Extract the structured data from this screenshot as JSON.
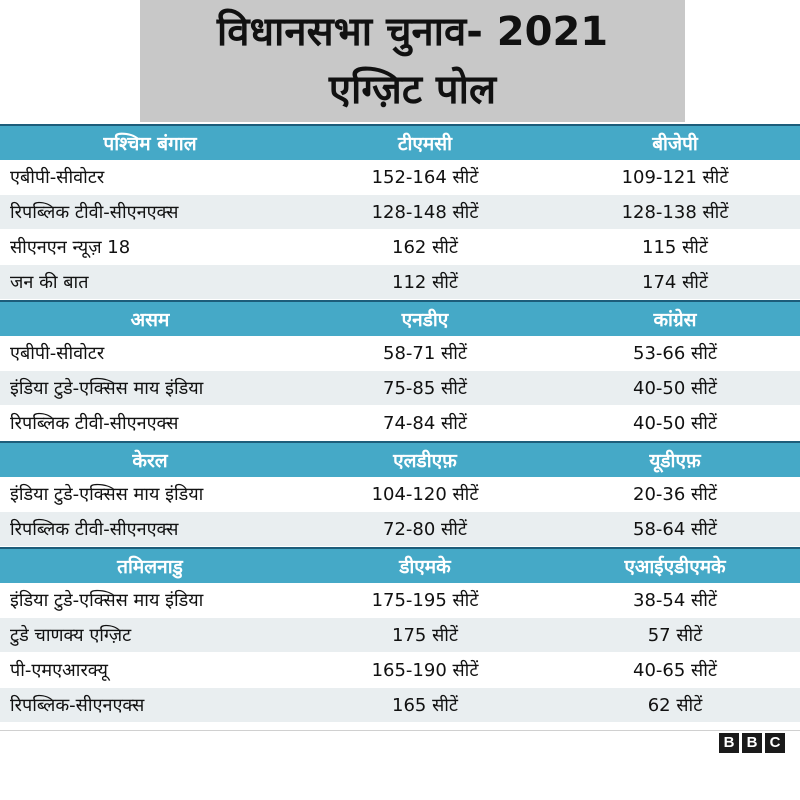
{
  "title": {
    "line1": "विधानसभा चुनाव- 2021",
    "line2": "एग्ज़िट पोल"
  },
  "sections": [
    {
      "header": [
        "पश्चिम बंगाल",
        "टीएमसी",
        "बीजेपी"
      ],
      "rows": [
        [
          "एबीपी-सीवोटर",
          "152-164 सीटें",
          "109-121 सीटें"
        ],
        [
          "रिपब्लिक टीवी-सीएनएक्स",
          "128-148 सीटें",
          "128-138 सीटें"
        ],
        [
          "सीएनएन न्यूज़ 18",
          "162 सीटें",
          "115 सीटें"
        ],
        [
          "जन की बात",
          "112 सीटें",
          "174 सीटें"
        ]
      ]
    },
    {
      "header": [
        "असम",
        "एनडीए",
        "कांग्रेस"
      ],
      "rows": [
        [
          "एबीपी-सीवोटर",
          "58-71 सीटें",
          "53-66 सीटें"
        ],
        [
          "इंडिया टुडे-एक्सिस माय इंडिया",
          "75-85 सीटें",
          "40-50 सीटें"
        ],
        [
          "रिपब्लिक टीवी-सीएनएक्स",
          "74-84 सीटें",
          "40-50 सीटें"
        ]
      ]
    },
    {
      "header": [
        "केरल",
        "एलडीएफ़",
        "यूडीएफ़"
      ],
      "rows": [
        [
          "इंडिया टुडे-एक्सिस माय इंडिया",
          "104-120 सीटें",
          "20-36 सीटें"
        ],
        [
          "रिपब्लिक टीवी-सीएनएक्स",
          "72-80 सीटें",
          "58-64 सीटें"
        ]
      ]
    },
    {
      "header": [
        "तमिलनाडु",
        "डीएमके",
        "एआईएडीएमके"
      ],
      "rows": [
        [
          "इंडिया टुडे-एक्सिस माय इंडिया",
          "175-195 सीटें",
          "38-54 सीटें"
        ],
        [
          "टुडे चाणक्य एग्ज़िट",
          "175 सीटें",
          "57 सीटें"
        ],
        [
          "पी-एमएआरक्यू",
          "165-190 सीटें",
          "40-65 सीटें"
        ],
        [
          "रिपब्लिक-सीएनएक्स",
          "165 सीटें",
          "62 सीटें"
        ]
      ]
    }
  ],
  "logo": {
    "letters": [
      "B",
      "B",
      "C"
    ]
  },
  "colors": {
    "header_bg": "#45a9c7",
    "title_bg": "#c8c8c8",
    "stripe": "#e9eef0"
  }
}
